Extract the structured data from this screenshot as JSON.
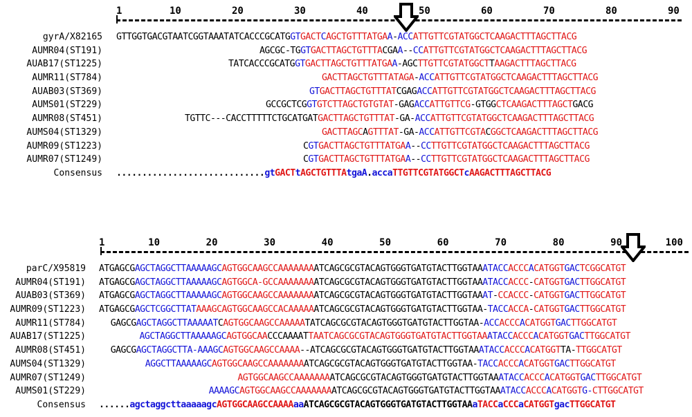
{
  "top": {
    "ruler": [
      {
        "label": "1",
        "pos": 1
      },
      {
        "label": "10",
        "pos": 10
      },
      {
        "label": "20",
        "pos": 20
      },
      {
        "label": "30",
        "pos": 30
      },
      {
        "label": "40",
        "pos": 40
      },
      {
        "label": "50",
        "pos": 50
      },
      {
        "label": "60",
        "pos": 60
      },
      {
        "label": "70",
        "pos": 70
      },
      {
        "label": "80",
        "pos": 80
      },
      {
        "label": "90",
        "pos": 90
      }
    ],
    "arrow_position": 47,
    "rows": [
      {
        "label": "gyrA/X82165",
        "indent": 0,
        "segments": [
          [
            "k",
            "GTTGGTGACGTAATCGGTAAATATCACCCGCATG"
          ],
          [
            "b",
            "GT"
          ],
          [
            "r",
            "GACT"
          ],
          [
            "b",
            "C"
          ],
          [
            "r",
            "AGCTGTTTATGA"
          ],
          [
            "b",
            "A"
          ],
          [
            "k",
            "-"
          ],
          [
            "b",
            "ACC"
          ],
          [
            "r",
            "ATTGTTCGTATGGCTC"
          ],
          [
            "r",
            "AAGACTTTAGCTTACG"
          ]
        ]
      },
      {
        "label": "AUMR04(ST191)",
        "indent": 23,
        "segments": [
          [
            "k",
            "AGCGC-TG"
          ],
          [
            "b",
            "GT"
          ],
          [
            "r",
            "GACTT"
          ],
          [
            "r",
            "AGCTGTTTA"
          ],
          [
            "k",
            "CGA"
          ],
          [
            "b",
            "A"
          ],
          [
            "k",
            "--"
          ],
          [
            "b",
            "CC"
          ],
          [
            "r",
            "ATTGTTCGTATGGCTC"
          ],
          [
            "r",
            "AAGACTTTAGCTTACG"
          ]
        ]
      },
      {
        "label": "AUAB17(ST1225)",
        "indent": 18,
        "segments": [
          [
            "k",
            "TATCACCCGCATG"
          ],
          [
            "b",
            "GT"
          ],
          [
            "r",
            "GACTT"
          ],
          [
            "r",
            "AGCTGTTTATGA"
          ],
          [
            "b",
            "A"
          ],
          [
            "k",
            "-AGC"
          ],
          [
            "r",
            "TTGTTCGTATGGCT"
          ],
          [
            "k",
            "T"
          ],
          [
            "r",
            "AAGACTTTAGCTTACG"
          ]
        ]
      },
      {
        "label": "AUMR11(ST784)",
        "indent": 33,
        "segments": [
          [
            "r",
            "GACTT"
          ],
          [
            "r",
            "AGCTGTTTATAGA"
          ],
          [
            "k",
            "-"
          ],
          [
            "b",
            "ACC"
          ],
          [
            "r",
            "ATTGTTCGTATGGCTC"
          ],
          [
            "r",
            "AAGACTTTAGCTTACG"
          ]
        ]
      },
      {
        "label": "AUAB03(ST369)",
        "indent": 31,
        "segments": [
          [
            "b",
            "GT"
          ],
          [
            "r",
            "GACTT"
          ],
          [
            "r",
            "AGCTGTTTAT"
          ],
          [
            "k",
            "CGAG"
          ],
          [
            "b",
            "ACC"
          ],
          [
            "r",
            "ATTGTTCGTATGGCTC"
          ],
          [
            "r",
            "AAGACTTTAGCTTACG"
          ]
        ]
      },
      {
        "label": "AUMS01(ST229)",
        "indent": 24,
        "segments": [
          [
            "k",
            "GCCGCTCG"
          ],
          [
            "b",
            "GT"
          ],
          [
            "r",
            "GTCTT"
          ],
          [
            "r",
            "AGCTGTGTAT"
          ],
          [
            "k",
            "-GAG"
          ],
          [
            "b",
            "ACC"
          ],
          [
            "r",
            "ATTGTTCG"
          ],
          [
            "k",
            "-GTGG"
          ],
          [
            "r",
            "CTCAAGACTTTAGCT"
          ],
          [
            "k",
            "GACG"
          ]
        ]
      },
      {
        "label": "AUMR08(ST451)",
        "indent": 11,
        "segments": [
          [
            "k",
            "TGTTC---CACCTTTTTCTGCATGAT"
          ],
          [
            "r",
            "GACTT"
          ],
          [
            "r",
            "AGCTGTTTAT"
          ],
          [
            "k",
            "-GA-"
          ],
          [
            "b",
            "ACC"
          ],
          [
            "r",
            "ATTGTTCGTATGGCTC"
          ],
          [
            "r",
            "AAGACTTTAGCTTACG"
          ]
        ]
      },
      {
        "label": "AUMS04(ST1329)",
        "indent": 33,
        "segments": [
          [
            "r",
            "GACTTAGC"
          ],
          [
            "k",
            "A"
          ],
          [
            "r",
            "GTTTAT"
          ],
          [
            "k",
            "-GA-"
          ],
          [
            "b",
            "ACC"
          ],
          [
            "r",
            "ATTGTTCGTA"
          ],
          [
            "k",
            "C"
          ],
          [
            "r",
            "GGCTC"
          ],
          [
            "r",
            "AAGACTTTAGCTTACG"
          ]
        ]
      },
      {
        "label": "AUMR09(ST1223)",
        "indent": 30,
        "segments": [
          [
            "k",
            "C"
          ],
          [
            "b",
            "GT"
          ],
          [
            "r",
            "GACTT"
          ],
          [
            "r",
            "AGCTGTTTATGA"
          ],
          [
            "b",
            "A"
          ],
          [
            "k",
            "--"
          ],
          [
            "b",
            "CC"
          ],
          [
            "r",
            "TTGTTCGTATGGCTC"
          ],
          [
            "r",
            "AAGACTTTAGCTTACG"
          ]
        ]
      },
      {
        "label": "AUMR07(ST1249)",
        "indent": 30,
        "segments": [
          [
            "k",
            "C"
          ],
          [
            "b",
            "GT"
          ],
          [
            "r",
            "GACTT"
          ],
          [
            "r",
            "AGCTGTTTATGA"
          ],
          [
            "b",
            "A"
          ],
          [
            "k",
            "--"
          ],
          [
            "b",
            "CC"
          ],
          [
            "r",
            "TTGTTCGTATGGCTC"
          ],
          [
            "r",
            "AAGACTTTAGCTTACG"
          ]
        ]
      },
      {
        "label": "Consensus",
        "indent": 0,
        "consensus": true,
        "segments": [
          [
            "k",
            "............................."
          ],
          [
            "b",
            "gt"
          ],
          [
            "r",
            "GACT"
          ],
          [
            "b",
            "t"
          ],
          [
            "r",
            "AGCTGTTTA"
          ],
          [
            "b",
            "tgaA"
          ],
          [
            "k",
            "."
          ],
          [
            "b",
            "acca"
          ],
          [
            "r",
            "TTGTTCGTATGGCT"
          ],
          [
            "b",
            "c"
          ],
          [
            "r",
            "AAGACTTTAGCTTACG"
          ]
        ]
      }
    ]
  },
  "bottom": {
    "ruler": [
      {
        "label": "1",
        "pos": 1
      },
      {
        "label": "10",
        "pos": 10
      },
      {
        "label": "20",
        "pos": 20
      },
      {
        "label": "30",
        "pos": 30
      },
      {
        "label": "40",
        "pos": 40
      },
      {
        "label": "50",
        "pos": 50
      },
      {
        "label": "60",
        "pos": 60
      },
      {
        "label": "70",
        "pos": 70
      },
      {
        "label": "80",
        "pos": 80
      },
      {
        "label": "90",
        "pos": 90
      },
      {
        "label": "100",
        "pos": 100
      }
    ],
    "arrow_position": 93,
    "rows": [
      {
        "label": "parC/X95819",
        "indent": 0,
        "segments": [
          [
            "k",
            "ATGAGCG"
          ],
          [
            "b",
            "AGCTAGGCTTAAAAAGC"
          ],
          [
            "r",
            "AGTGGCAAGCCAAAAAAA"
          ],
          [
            "k",
            "ATCAGCGCGTACAGTGGGTGATGTACTTGGTAA"
          ],
          [
            "b",
            "ATACC"
          ],
          [
            "r",
            "ACCC"
          ],
          [
            "b",
            "A"
          ],
          [
            "r",
            "CATGGT"
          ],
          [
            "b",
            "GAC"
          ],
          [
            "r",
            "TCGGCATGT"
          ]
        ]
      },
      {
        "label": "AUMR04(ST191)",
        "indent": 0,
        "segments": [
          [
            "k",
            "ATGAGCG"
          ],
          [
            "b",
            "AGCTAGGCTTAAAAAGC"
          ],
          [
            "r",
            "AGTGGCA-GCCAAAAAAA"
          ],
          [
            "k",
            "ATCAGCGCGTACAGTGGGTGATGTACTTGGTAA"
          ],
          [
            "b",
            "ATACC"
          ],
          [
            "r",
            "ACCC"
          ],
          [
            "k",
            "-"
          ],
          [
            "r",
            "CATGGT"
          ],
          [
            "b",
            "GAC"
          ],
          [
            "r",
            "TTGGCATGT"
          ]
        ]
      },
      {
        "label": "AUAB03(ST369)",
        "indent": 0,
        "segments": [
          [
            "k",
            "ATGAGCG"
          ],
          [
            "b",
            "AGCTAGGCTTAAAAAGC"
          ],
          [
            "r",
            "AGTGGCAAGCCAAAAAAA"
          ],
          [
            "k",
            "ATCAGCGCGTACAGTGGGTGATGTACTTGGTAA"
          ],
          [
            "b",
            "AT"
          ],
          [
            "k",
            "-"
          ],
          [
            "r",
            "CCACCC"
          ],
          [
            "k",
            "-"
          ],
          [
            "r",
            "CATGGT"
          ],
          [
            "b",
            "GAC"
          ],
          [
            "r",
            "TTGGCATGT"
          ]
        ]
      },
      {
        "label": "AUMR09(ST1223)",
        "indent": 0,
        "segments": [
          [
            "k",
            "ATGAGCG"
          ],
          [
            "b",
            "AGCTCGGCTTAT"
          ],
          [
            "r",
            "AAAGC"
          ],
          [
            "r",
            "AGTGGCAAGCCAC"
          ],
          [
            "r",
            "AAAAA"
          ],
          [
            "k",
            "ATCAGCGCGTACAGTGGGTGATGTACTTGGTAA"
          ],
          [
            "k",
            "-"
          ],
          [
            "b",
            "TACC"
          ],
          [
            "r",
            "ACCA"
          ],
          [
            "k",
            "-"
          ],
          [
            "r",
            "CATGGT"
          ],
          [
            "b",
            "GAC"
          ],
          [
            "r",
            "TTGGCATGT"
          ]
        ]
      },
      {
        "label": "AUMR11(ST784)",
        "indent": 2,
        "segments": [
          [
            "k",
            "GAGCG"
          ],
          [
            "b",
            "AGCTAGGCTTAAAAAT"
          ],
          [
            "k",
            "C"
          ],
          [
            "r",
            "AGTGGCAAGCCAAAAA"
          ],
          [
            "k",
            "TATCAGCGCGTACAGTGGGTGATGTACTTGGTAA"
          ],
          [
            "k",
            "-"
          ],
          [
            "b",
            "ACC"
          ],
          [
            "r",
            "ACCC"
          ],
          [
            "b",
            "A"
          ],
          [
            "r",
            "CATGGT"
          ],
          [
            "b",
            "GAC"
          ],
          [
            "r",
            "TTGGCATGT"
          ]
        ]
      },
      {
        "label": "AUAB17(ST1225)",
        "indent": 7,
        "segments": [
          [
            "b",
            "AGCTAGGCTTAAAAAGC"
          ],
          [
            "r",
            "AGTGGCAA"
          ],
          [
            "k",
            "CCCAAAAT"
          ],
          [
            "r",
            "TAATCAGCGCGTACAGTGGGTGATGTACTTGGTAA"
          ],
          [
            "b",
            "ATACC"
          ],
          [
            "r",
            "ACCC"
          ],
          [
            "b",
            "A"
          ],
          [
            "r",
            "CATGGT"
          ],
          [
            "b",
            "GAC"
          ],
          [
            "r",
            "TTGGCATGT"
          ]
        ]
      },
      {
        "label": "AUMR08(ST451)",
        "indent": 2,
        "segments": [
          [
            "k",
            "GAGCG"
          ],
          [
            "b",
            "AGCTAGGCTTA-AAAGC"
          ],
          [
            "r",
            "AGTGGCAAGCCAAAA"
          ],
          [
            "k",
            "--"
          ],
          [
            "k",
            "ATCAGCGCGTACAGTGGGTGATGTACTTGGTAA"
          ],
          [
            "b",
            "ATACC"
          ],
          [
            "r",
            "ACCC"
          ],
          [
            "b",
            "A"
          ],
          [
            "r",
            "CATGGT"
          ],
          [
            "k",
            "TA-"
          ],
          [
            "r",
            "TTGGCATGT"
          ]
        ]
      },
      {
        "label": "AUMS04(ST1329)",
        "indent": 8,
        "segments": [
          [
            "b",
            "AGGCTTAAAAAGC"
          ],
          [
            "r",
            "AGTGGCAAGCCAAAAAAA"
          ],
          [
            "k",
            "ATCAGCGCGTACAGTGGGTGATGTACTTGGTAA"
          ],
          [
            "k",
            "-"
          ],
          [
            "b",
            "TACC"
          ],
          [
            "r",
            "ACCC"
          ],
          [
            "b",
            "A"
          ],
          [
            "r",
            "CATGGT"
          ],
          [
            "b",
            "GAC"
          ],
          [
            "r",
            "TTGGCATGT"
          ]
        ]
      },
      {
        "label": "AUMR07(ST1249)",
        "indent": 24,
        "segments": [
          [
            "r",
            "AGTGGCAAGCCAAAAAAA"
          ],
          [
            "k",
            "ATCAGCGCGTACAGTGGGTGATGTACTTGGTAA"
          ],
          [
            "b",
            "ATACC"
          ],
          [
            "r",
            "ACCC"
          ],
          [
            "b",
            "A"
          ],
          [
            "r",
            "CATGGT"
          ],
          [
            "b",
            "GAC"
          ],
          [
            "r",
            "TTGGCATGT"
          ]
        ]
      },
      {
        "label": "AUMS01(ST229)",
        "indent": 19,
        "segments": [
          [
            "b",
            "AAAAGC"
          ],
          [
            "r",
            "AGTGGCAAGCCAAAAAAA"
          ],
          [
            "k",
            "ATCAGCGCGTACAGTGGGTGATGTACTTGGTAA"
          ],
          [
            "b",
            "ATACC"
          ],
          [
            "r",
            "ACCC"
          ],
          [
            "b",
            "A"
          ],
          [
            "r",
            "CATGGT"
          ],
          [
            "b",
            "G-"
          ],
          [
            "r",
            "CTTGGCATGT"
          ]
        ]
      },
      {
        "label": "Consensus",
        "indent": 0,
        "consensus": true,
        "segments": [
          [
            "k",
            "......"
          ],
          [
            "b",
            "agctaggcttaaaaagc"
          ],
          [
            "r",
            "AGTGGCAAGCCAAAA"
          ],
          [
            "b",
            "aa"
          ],
          [
            "k",
            "ATCAGCGCGTACAGTGGGTGATGTACTTGGTAA"
          ],
          [
            "b",
            "a"
          ],
          [
            "r",
            "TACC"
          ],
          [
            "b",
            "a"
          ],
          [
            "r",
            "CCC"
          ],
          [
            "b",
            "a"
          ],
          [
            "r",
            "CATGGT"
          ],
          [
            "b",
            "gac"
          ],
          [
            "r",
            "TTGGCATGT"
          ]
        ]
      }
    ]
  }
}
